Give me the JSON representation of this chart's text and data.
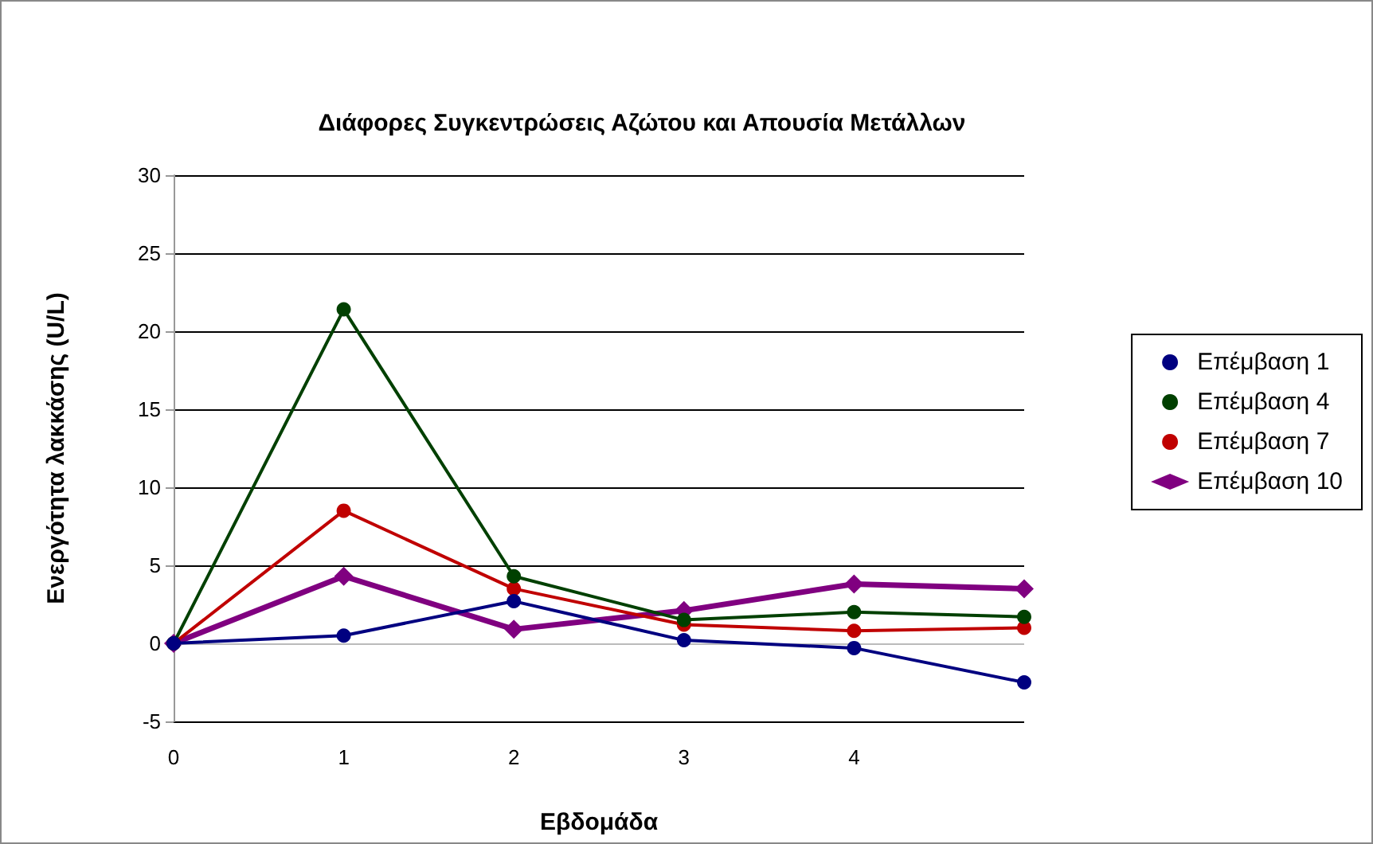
{
  "chart_data": {
    "type": "line",
    "title": "Διάφορες Συγκεντρώσεις Αζώτου και Απουσία Μετάλλων",
    "xlabel": "Εβδομάδα",
    "ylabel": "Ενεργότητα λακκάσης (U/L)",
    "categories": [
      "0",
      "1",
      "2",
      "3",
      "4",
      null
    ],
    "series": [
      {
        "name": "Επέμβαση 1",
        "color": "#000080",
        "marker": "circle",
        "values": [
          0,
          0.5,
          2.7,
          0.2,
          -0.3,
          -2.5
        ]
      },
      {
        "name": "Επέμβαση 4",
        "color": "#004000",
        "marker": "circle",
        "values": [
          0,
          21.4,
          4.3,
          1.5,
          2.0,
          1.7
        ]
      },
      {
        "name": "Επέμβαση 7",
        "color": "#c00000",
        "marker": "circle",
        "values": [
          0,
          8.5,
          3.5,
          1.2,
          0.8,
          1.0
        ]
      },
      {
        "name": "Επέμβαση 10",
        "color": "#800080",
        "marker": "diamond",
        "values": [
          0,
          4.3,
          0.9,
          2.1,
          3.8,
          3.5
        ]
      }
    ],
    "ylim": [
      -5,
      30
    ],
    "yticks": [
      -5,
      0,
      5,
      10,
      15,
      20,
      25,
      30
    ],
    "grid": "y",
    "legend": "right",
    "line_style": "solid"
  }
}
